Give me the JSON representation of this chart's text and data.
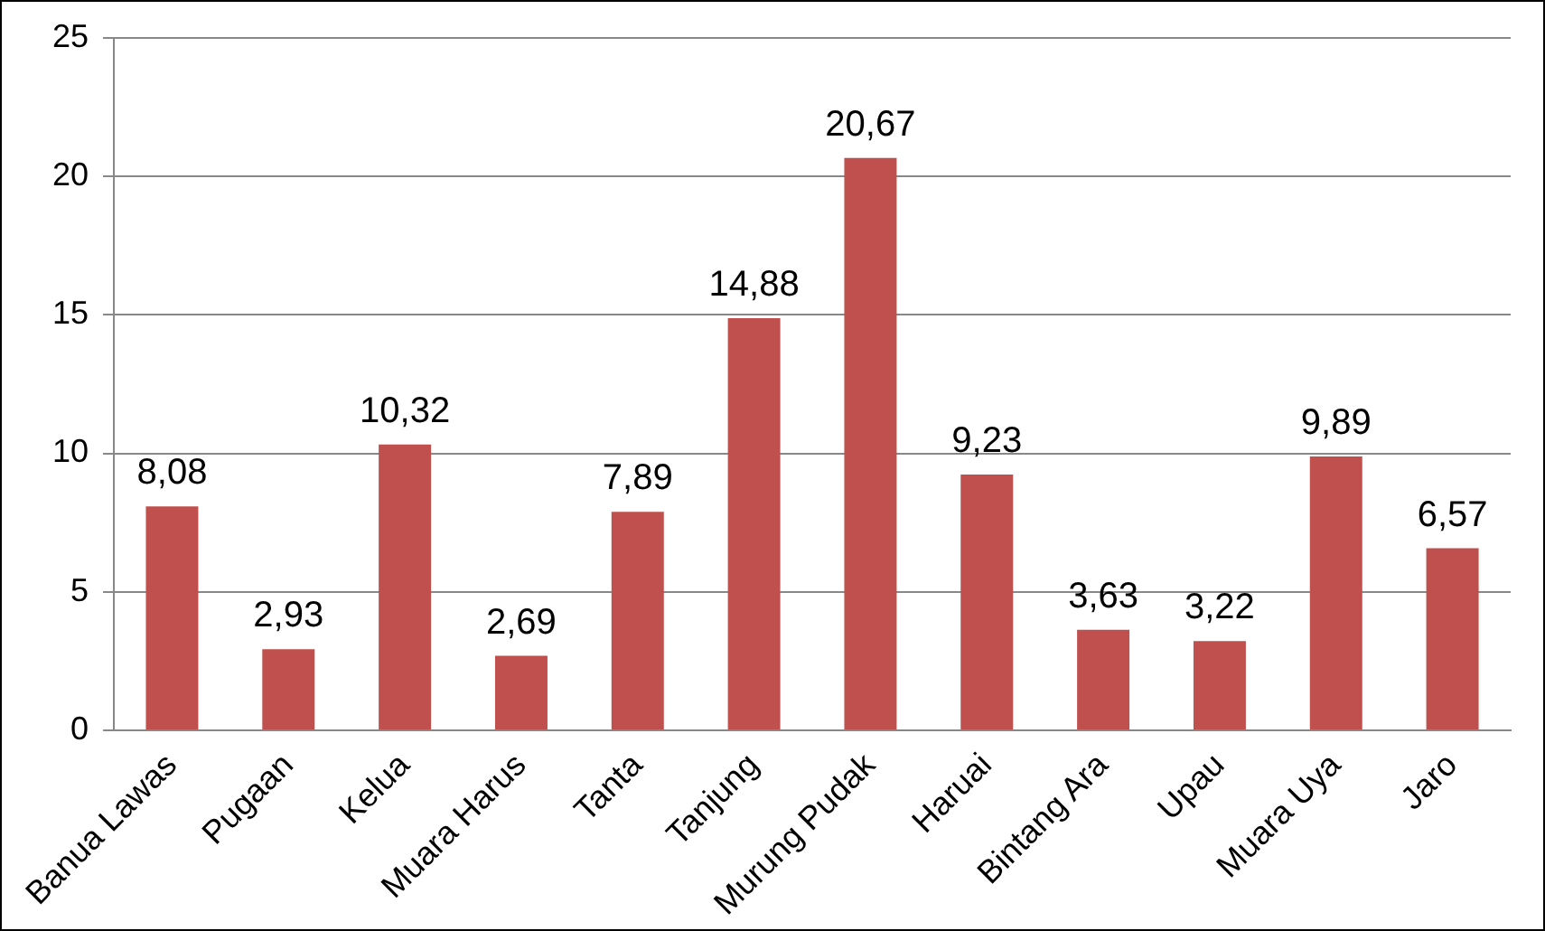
{
  "chart_data": {
    "type": "bar",
    "categories": [
      "Banua Lawas",
      "Pugaan",
      "Kelua",
      "Muara Harus",
      "Tanta",
      "Tanjung",
      "Murung Pudak",
      "Haruai",
      "Bintang Ara",
      "Upau",
      "Muara Uya",
      "Jaro"
    ],
    "values": [
      8.08,
      2.93,
      10.32,
      2.69,
      7.89,
      14.88,
      20.67,
      9.23,
      3.63,
      3.22,
      9.89,
      6.57
    ],
    "value_labels": [
      "8,08",
      "2,93",
      "10,32",
      "2,69",
      "7,89",
      "14,88",
      "20,67",
      "9,23",
      "3,63",
      "3,22",
      "9,89",
      "6,57"
    ],
    "color": "#c0504d",
    "ylim": [
      0,
      25
    ],
    "yticks": [
      0,
      5,
      10,
      15,
      20,
      25
    ],
    "grid": "y",
    "legend": false
  }
}
